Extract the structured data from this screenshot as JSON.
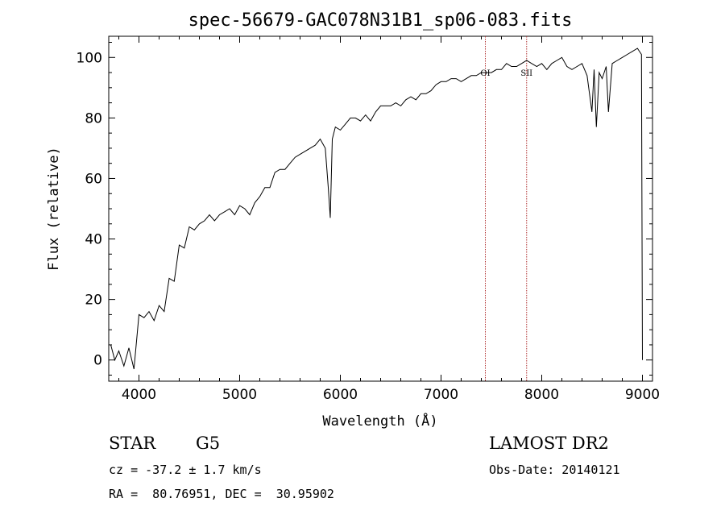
{
  "chart_data": {
    "type": "line",
    "title": "spec-56679-GAC078N31B1_sp06-083.fits",
    "xlabel": "Wavelength (Å)",
    "ylabel": "Flux (relative)",
    "xlim": [
      3700,
      9100
    ],
    "ylim": [
      -7,
      107
    ],
    "xticks": [
      4000,
      5000,
      6000,
      7000,
      8000,
      9000
    ],
    "yticks": [
      0,
      20,
      40,
      60,
      80,
      100
    ],
    "grid": false,
    "series": [
      {
        "x": [
          3720,
          3760,
          3800,
          3850,
          3900,
          3950,
          4000,
          4050,
          4100,
          4150,
          4200,
          4250,
          4300,
          4350,
          4400,
          4450,
          4500,
          4550,
          4600,
          4650,
          4700,
          4750,
          4800,
          4850,
          4900,
          4950,
          5000,
          5050,
          5100,
          5150,
          5200,
          5250,
          5300,
          5350,
          5400,
          5450,
          5500,
          5550,
          5600,
          5650,
          5700,
          5750,
          5800,
          5850,
          5880,
          5900,
          5920,
          5950,
          6000,
          6050,
          6100,
          6150,
          6200,
          6250,
          6300,
          6350,
          6400,
          6450,
          6500,
          6550,
          6600,
          6650,
          6700,
          6750,
          6800,
          6850,
          6900,
          6950,
          7000,
          7050,
          7100,
          7150,
          7200,
          7250,
          7300,
          7350,
          7400,
          7450,
          7500,
          7550,
          7600,
          7650,
          7700,
          7750,
          7800,
          7850,
          7900,
          7950,
          8000,
          8050,
          8100,
          8150,
          8200,
          8250,
          8300,
          8350,
          8400,
          8450,
          8498,
          8520,
          8542,
          8570,
          8600,
          8640,
          8662,
          8700,
          8750,
          8800,
          8850,
          8900,
          8950,
          8990,
          9000
        ],
        "y": [
          5,
          0,
          3,
          -2,
          4,
          -3,
          15,
          14,
          16,
          13,
          18,
          16,
          27,
          26,
          38,
          37,
          44,
          43,
          45,
          46,
          48,
          46,
          48,
          49,
          50,
          48,
          51,
          50,
          48,
          52,
          54,
          57,
          57,
          62,
          63,
          63,
          65,
          67,
          68,
          69,
          70,
          71,
          73,
          70,
          57,
          47,
          73,
          77,
          76,
          78,
          80,
          80,
          79,
          81,
          79,
          82,
          84,
          84,
          84,
          85,
          84,
          86,
          87,
          86,
          88,
          88,
          89,
          91,
          92,
          92,
          93,
          93,
          92,
          93,
          94,
          94,
          95,
          95,
          95,
          96,
          96,
          98,
          97,
          97,
          98,
          99,
          98,
          97,
          98,
          96,
          98,
          99,
          100,
          97,
          96,
          97,
          98,
          94,
          82,
          96,
          77,
          95,
          93,
          97,
          82,
          98,
          99,
          100,
          101,
          102,
          103,
          101,
          0
        ]
      }
    ],
    "annotations": [
      {
        "label": "OI",
        "x": 7440
      },
      {
        "label": "SII",
        "x": 7850
      }
    ]
  },
  "info": {
    "object_class": "STAR",
    "subclass": "G5",
    "survey": "LAMOST DR2",
    "velocity": "cz = -37.2 ± 1.7 km/s",
    "obs_date": "Obs-Date: 20140121",
    "coords": "RA =  80.76951, DEC =  30.95902"
  }
}
